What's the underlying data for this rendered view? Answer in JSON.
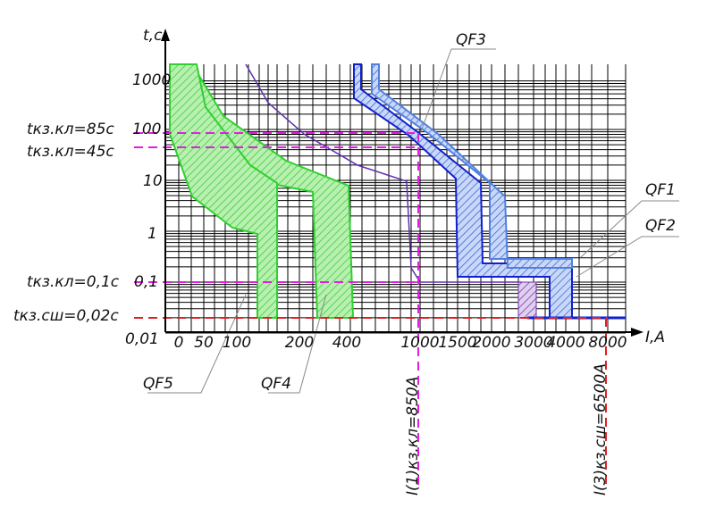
{
  "axes": {
    "y_label": "t,c",
    "x_label": "I,A",
    "y_ticks": [
      "1000",
      "100",
      "10",
      "1",
      "0,1",
      "0,01"
    ],
    "x_ticks": [
      "0",
      "50",
      "100",
      "200",
      "400",
      "1000",
      "1500",
      "2000",
      "3000",
      "4000",
      "8000"
    ]
  },
  "time_markers": [
    "tкз.кл=85с",
    "tкз.кл=45с",
    "tкз.кл=0,1с",
    "tкз.сш=0,02с"
  ],
  "current_markers": [
    "I(1)кз.кл=850А",
    "I(3)кз.сш=6500А"
  ],
  "curves": [
    "QF3",
    "QF1",
    "QF2",
    "QF5",
    "QF4"
  ]
}
